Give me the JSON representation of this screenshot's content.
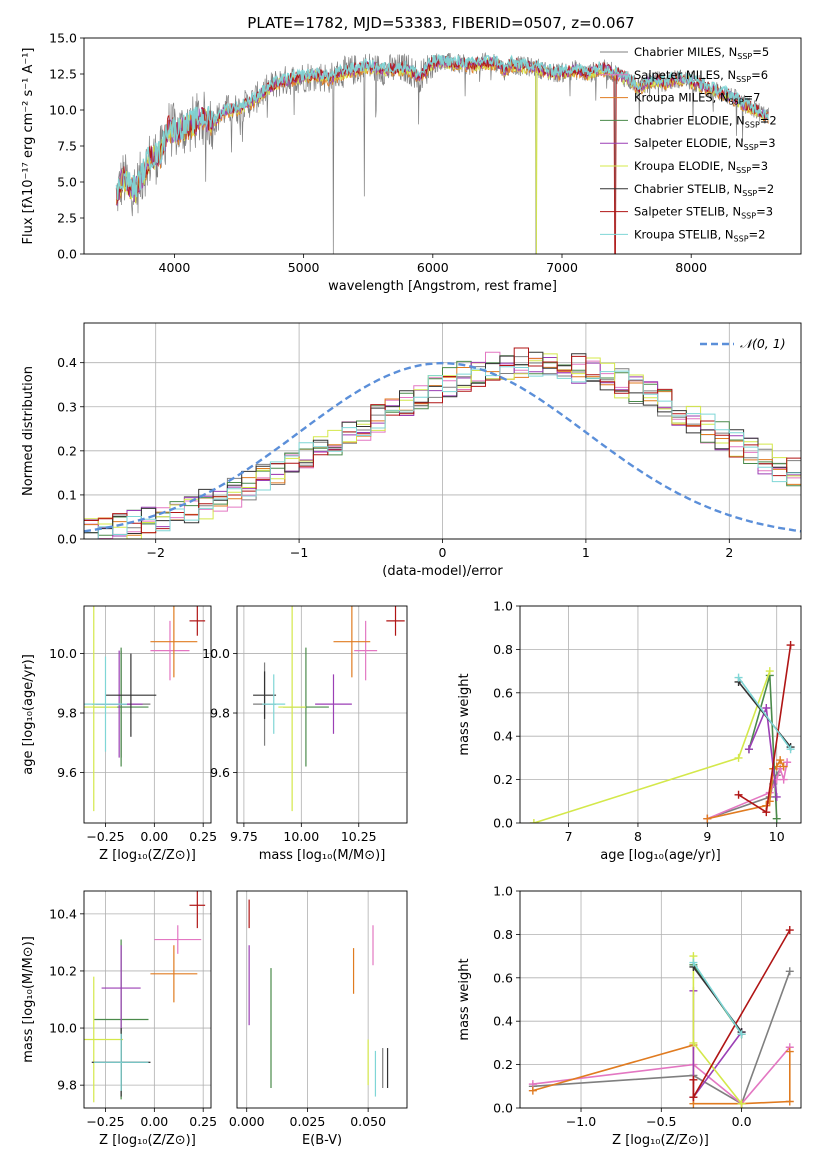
{
  "figure": {
    "title": "PLATE=1782, MJD=53383, FIBERID=0507, z=0.067"
  },
  "series_legend": [
    {
      "label": "Chabrier MILES, N",
      "sub": "SSP",
      "eq": "=5",
      "color": "#7f7f7f"
    },
    {
      "label": "Salpeter MILES, N",
      "sub": "SSP",
      "eq": "=6",
      "color": "#e377c2"
    },
    {
      "label": "Kroupa MILES, N",
      "sub": "SSP",
      "eq": "=7",
      "color": "#e07b20"
    },
    {
      "label": "Chabrier ELODIE, N",
      "sub": "SSP",
      "eq": "=2",
      "color": "#4a8a4a"
    },
    {
      "label": "Salpeter ELODIE, N",
      "sub": "SSP",
      "eq": "=3",
      "color": "#9b3fb5"
    },
    {
      "label": "Kroupa ELODIE, N",
      "sub": "SSP",
      "eq": "=3",
      "color": "#d4e84a"
    },
    {
      "label": "Chabrier STELIB, N",
      "sub": "SSP",
      "eq": "=2",
      "color": "#333333"
    },
    {
      "label": "Salpeter STELIB, N",
      "sub": "SSP",
      "eq": "=3",
      "color": "#b01515"
    },
    {
      "label": "Kroupa STELIB, N",
      "sub": "SSP",
      "eq": "=2",
      "color": "#7fd6d6"
    }
  ],
  "chart_data": [
    {
      "id": "spectrum",
      "type": "line",
      "xlabel": "wavelength [Angstrom, rest frame]",
      "ylabel": "Flux [fλ10⁻¹⁷ erg cm⁻² s⁻¹ A⁻¹]",
      "xlim": [
        3300,
        8850
      ],
      "ylim": [
        0,
        15
      ],
      "xticks": [
        4000,
        5000,
        6000,
        7000,
        8000
      ],
      "yticks": [
        0.0,
        2.5,
        5.0,
        7.5,
        10.0,
        12.5,
        15.0
      ],
      "continuum": [
        [
          3550,
          4.0
        ],
        [
          3600,
          5.2
        ],
        [
          3700,
          4.4
        ],
        [
          3800,
          6.5
        ],
        [
          3900,
          7.0
        ],
        [
          3950,
          8.8
        ],
        [
          4000,
          8.5
        ],
        [
          4100,
          8.8
        ],
        [
          4200,
          9.4
        ],
        [
          4300,
          9.2
        ],
        [
          4400,
          10.0
        ],
        [
          4500,
          10.1
        ],
        [
          4600,
          10.6
        ],
        [
          4700,
          11.3
        ],
        [
          4800,
          11.9
        ],
        [
          4900,
          12.1
        ],
        [
          5000,
          12.3
        ],
        [
          5100,
          12.4
        ],
        [
          5200,
          12.2
        ],
        [
          5300,
          12.6
        ],
        [
          5400,
          12.8
        ],
        [
          5500,
          13.0
        ],
        [
          5600,
          12.8
        ],
        [
          5700,
          12.8
        ],
        [
          5800,
          12.9
        ],
        [
          5900,
          12.3
        ],
        [
          6000,
          13.3
        ],
        [
          6100,
          13.3
        ],
        [
          6200,
          13.2
        ],
        [
          6300,
          13.1
        ],
        [
          6400,
          13.3
        ],
        [
          6500,
          13.3
        ],
        [
          6560,
          12.7
        ],
        [
          6600,
          13.2
        ],
        [
          6700,
          13.0
        ],
        [
          6800,
          13.0
        ],
        [
          6900,
          12.6
        ],
        [
          7000,
          12.6
        ],
        [
          7100,
          12.8
        ],
        [
          7200,
          12.5
        ],
        [
          7300,
          12.9
        ],
        [
          7400,
          12.6
        ],
        [
          7500,
          12.2
        ],
        [
          7600,
          11.5
        ],
        [
          7700,
          12.1
        ],
        [
          7800,
          11.9
        ],
        [
          7900,
          12.2
        ],
        [
          8000,
          12.0
        ],
        [
          8100,
          11.6
        ],
        [
          8200,
          11.3
        ],
        [
          8300,
          11.0
        ],
        [
          8400,
          10.4
        ],
        [
          8500,
          10.0
        ],
        [
          8600,
          9.5
        ]
      ],
      "features": [
        {
          "name": "drop-5200",
          "x": 5230,
          "y": 0
        },
        {
          "name": "drop-5470",
          "x": 5470,
          "y": 4.0
        },
        {
          "name": "drop-5890",
          "x": 5890,
          "y": 9.0
        },
        {
          "name": "drop-6800",
          "x": 6800,
          "y": 0
        },
        {
          "name": "drop-7410",
          "x": 7410,
          "y": 0
        }
      ]
    },
    {
      "id": "residual-histogram",
      "type": "line",
      "xlabel": "(data-model)/error",
      "ylabel": "Normed distribution",
      "xlim": [
        -2.5,
        2.5
      ],
      "ylim": [
        0,
        0.49
      ],
      "xticks": [
        -2,
        -1,
        0,
        1,
        2
      ],
      "yticks": [
        0.0,
        0.1,
        0.2,
        0.3,
        0.4
      ],
      "legend": {
        "label": "𝒩(0, 1)",
        "color": "#5b8fd9",
        "position": "upper right"
      },
      "bin_width": 0.1,
      "bins_start": -2.5,
      "base_density": [
        0.018,
        0.022,
        0.027,
        0.033,
        0.04,
        0.048,
        0.058,
        0.068,
        0.079,
        0.092,
        0.106,
        0.121,
        0.136,
        0.152,
        0.17,
        0.187,
        0.204,
        0.222,
        0.24,
        0.258,
        0.276,
        0.294,
        0.311,
        0.327,
        0.342,
        0.356,
        0.369,
        0.38,
        0.389,
        0.395,
        0.399,
        0.4,
        0.398,
        0.394,
        0.387,
        0.378,
        0.366,
        0.353,
        0.339,
        0.323,
        0.306,
        0.289,
        0.271,
        0.252,
        0.234,
        0.216,
        0.198,
        0.181,
        0.165,
        0.15
      ]
    },
    {
      "id": "age-vs-Z",
      "type": "scatter",
      "xlabel": "Z [log₁₀(Z/Z⊙)]",
      "ylabel": "age  [log₁₀(age/yr)]",
      "xlim": [
        -0.36,
        0.29
      ],
      "ylim": [
        9.43,
        10.16
      ],
      "xticks": [
        -0.25,
        0.0,
        0.25
      ],
      "yticks": [
        9.6,
        9.8,
        10.0
      ],
      "points": [
        {
          "series": 0,
          "x": -0.17,
          "y": 9.83,
          "xerr": 0.15,
          "yerr": 0.18
        },
        {
          "series": 1,
          "x": 0.08,
          "y": 10.01,
          "xerr": 0.1,
          "yerr": 0.1
        },
        {
          "series": 2,
          "x": 0.1,
          "y": 10.04,
          "xerr": 0.12,
          "yerr": 0.12
        },
        {
          "series": 3,
          "x": -0.17,
          "y": 9.82,
          "xerr": 0.14,
          "yerr": 0.2
        },
        {
          "series": 4,
          "x": -0.18,
          "y": 9.83,
          "xerr": 0.12,
          "yerr": 0.18
        },
        {
          "series": 5,
          "x": -0.31,
          "y": 9.82,
          "xerr": 0.12,
          "yerr": 0.35
        },
        {
          "series": 6,
          "x": -0.12,
          "y": 9.86,
          "xerr": 0.13,
          "yerr": 0.14
        },
        {
          "series": 7,
          "x": 0.22,
          "y": 10.11,
          "xerr": 0.04,
          "yerr": 0.05
        },
        {
          "series": 8,
          "x": -0.25,
          "y": 9.83,
          "xerr": 0.11,
          "yerr": 0.16
        }
      ]
    },
    {
      "id": "age-vs-mass",
      "type": "scatter",
      "xlabel": "mass [log₁₀(M/M⊙)]",
      "ylabel": "",
      "xlim": [
        9.72,
        10.46
      ],
      "ylim": [
        9.43,
        10.16
      ],
      "xticks": [
        9.75,
        10.0,
        10.25
      ],
      "yticks": [
        9.6,
        9.8,
        10.0
      ],
      "points": [
        {
          "series": 0,
          "x": 9.84,
          "y": 9.83,
          "xerr": 0.05,
          "yerr": 0.14
        },
        {
          "series": 1,
          "x": 10.28,
          "y": 10.01,
          "xerr": 0.05,
          "yerr": 0.1
        },
        {
          "series": 2,
          "x": 10.22,
          "y": 10.04,
          "xerr": 0.08,
          "yerr": 0.12
        },
        {
          "series": 3,
          "x": 10.02,
          "y": 9.82,
          "xerr": 0.1,
          "yerr": 0.2
        },
        {
          "series": 4,
          "x": 10.14,
          "y": 9.83,
          "xerr": 0.08,
          "yerr": 0.1
        },
        {
          "series": 5,
          "x": 9.96,
          "y": 9.82,
          "xerr": 0.06,
          "yerr": 0.35
        },
        {
          "series": 6,
          "x": 9.84,
          "y": 9.86,
          "xerr": 0.05,
          "yerr": 0.08
        },
        {
          "series": 7,
          "x": 10.41,
          "y": 10.11,
          "xerr": 0.04,
          "yerr": 0.05
        },
        {
          "series": 8,
          "x": 9.88,
          "y": 9.83,
          "xerr": 0.05,
          "yerr": 0.1
        }
      ]
    },
    {
      "id": "weight-vs-age",
      "type": "line",
      "xlabel": "age  [log₁₀(age/yr)]",
      "ylabel": "mass weight",
      "xlim": [
        6.3,
        10.35
      ],
      "ylim": [
        0,
        1
      ],
      "xticks": [
        7,
        8,
        9,
        10
      ],
      "yticks": [
        0.0,
        0.2,
        0.4,
        0.6,
        0.8,
        1.0
      ],
      "series": [
        {
          "series": 0,
          "x": [
            9.0,
            9.9,
            9.95,
            10.0,
            10.05
          ],
          "y": [
            0.02,
            0.12,
            0.18,
            0.22,
            0.25
          ]
        },
        {
          "series": 1,
          "x": [
            9.0,
            9.9,
            10.0,
            10.05,
            10.1,
            10.15
          ],
          "y": [
            0.02,
            0.14,
            0.2,
            0.25,
            0.2,
            0.28
          ]
        },
        {
          "series": 2,
          "x": [
            9.0,
            9.85,
            9.9,
            9.95,
            10.0,
            10.05,
            10.1
          ],
          "y": [
            0.02,
            0.08,
            0.1,
            0.25,
            0.26,
            0.29,
            0.26
          ]
        },
        {
          "series": 3,
          "x": [
            9.6,
            9.9,
            10.0
          ],
          "y": [
            0.34,
            0.68,
            0.02
          ]
        },
        {
          "series": 4,
          "x": [
            9.6,
            9.85,
            10.0
          ],
          "y": [
            0.34,
            0.53,
            0.12
          ]
        },
        {
          "series": 5,
          "x": [
            6.5,
            9.45,
            9.9
          ],
          "y": [
            0.0,
            0.3,
            0.7
          ]
        },
        {
          "series": 6,
          "x": [
            9.45,
            10.2
          ],
          "y": [
            0.65,
            0.35
          ]
        },
        {
          "series": 7,
          "x": [
            9.45,
            9.85,
            10.2
          ],
          "y": [
            0.13,
            0.05,
            0.82
          ]
        },
        {
          "series": 8,
          "x": [
            9.45,
            10.2
          ],
          "y": [
            0.67,
            0.34
          ]
        }
      ]
    },
    {
      "id": "mass-vs-Z",
      "type": "scatter",
      "xlabel": "Z [log₁₀(Z/Z⊙)]",
      "ylabel": "mass [log₁₀(M/M⊙)]",
      "xlim": [
        -0.36,
        0.29
      ],
      "ylim": [
        9.72,
        10.48
      ],
      "xticks": [
        -0.25,
        0.0,
        0.25
      ],
      "yticks": [
        9.8,
        10.0,
        10.2,
        10.4
      ],
      "points": [
        {
          "series": 0,
          "x": -0.17,
          "y": 9.88,
          "xerr": 0.15,
          "yerr": 0.1
        },
        {
          "series": 1,
          "x": 0.12,
          "y": 10.31,
          "xerr": 0.12,
          "yerr": 0.05
        },
        {
          "series": 2,
          "x": 0.1,
          "y": 10.19,
          "xerr": 0.12,
          "yerr": 0.1
        },
        {
          "series": 3,
          "x": -0.17,
          "y": 10.03,
          "xerr": 0.14,
          "yerr": 0.28
        },
        {
          "series": 4,
          "x": -0.17,
          "y": 10.14,
          "xerr": 0.1,
          "yerr": 0.15
        },
        {
          "series": 5,
          "x": -0.31,
          "y": 9.96,
          "xerr": 0.15,
          "yerr": 0.22
        },
        {
          "series": 6,
          "x": -0.17,
          "y": 9.88,
          "xerr": 0.15,
          "yerr": 0.12
        },
        {
          "series": 7,
          "x": 0.22,
          "y": 10.43,
          "xerr": 0.04,
          "yerr": 0.08
        },
        {
          "series": 8,
          "x": -0.17,
          "y": 9.88,
          "xerr": 0.14,
          "yerr": 0.1
        }
      ]
    },
    {
      "id": "mass-vs-ebv",
      "type": "scatter",
      "xlabel": "E(B-V)",
      "ylabel": "",
      "xlim": [
        -0.004,
        0.066
      ],
      "ylim": [
        9.72,
        10.48
      ],
      "xticks": [
        0.0,
        0.025,
        0.05
      ],
      "points": [
        {
          "series": 0,
          "x": 0.056,
          "y": 9.86,
          "xerr": 0.0,
          "yerr": 0.07
        },
        {
          "series": 1,
          "x": 0.052,
          "y": 10.29,
          "xerr": 0.0,
          "yerr": 0.07
        },
        {
          "series": 2,
          "x": 0.044,
          "y": 10.2,
          "xerr": 0.0,
          "yerr": 0.08
        },
        {
          "series": 3,
          "x": 0.01,
          "y": 10.0,
          "xerr": 0.0,
          "yerr": 0.21
        },
        {
          "series": 4,
          "x": 0.001,
          "y": 10.15,
          "xerr": 0.0,
          "yerr": 0.14
        },
        {
          "series": 5,
          "x": 0.05,
          "y": 9.88,
          "xerr": 0.0,
          "yerr": 0.08
        },
        {
          "series": 6,
          "x": 0.058,
          "y": 9.86,
          "xerr": 0.0,
          "yerr": 0.07
        },
        {
          "series": 7,
          "x": 0.001,
          "y": 10.4,
          "xerr": 0.0,
          "yerr": 0.05
        },
        {
          "series": 8,
          "x": 0.053,
          "y": 9.84,
          "xerr": 0.0,
          "yerr": 0.08
        }
      ]
    },
    {
      "id": "weight-vs-Z",
      "type": "line",
      "xlabel": "Z [log₁₀(Z/Z⊙)]",
      "ylabel": "mass weight",
      "xlim": [
        -1.38,
        0.37
      ],
      "ylim": [
        0,
        1
      ],
      "xticks": [
        -1.0,
        -0.5,
        0.0
      ],
      "yticks": [
        0.0,
        0.2,
        0.4,
        0.6,
        0.8,
        1.0
      ],
      "series": [
        {
          "series": 0,
          "x": [
            -1.3,
            -0.3,
            0.0,
            0.3
          ],
          "y": [
            0.1,
            0.15,
            0.02,
            0.63
          ]
        },
        {
          "series": 1,
          "x": [
            -1.3,
            -0.3,
            0.0,
            0.3
          ],
          "y": [
            0.11,
            0.2,
            0.02,
            0.28
          ]
        },
        {
          "series": 2,
          "x": [
            -1.3,
            -0.3,
            -0.3,
            0.0,
            0.3,
            0.3
          ],
          "y": [
            0.08,
            0.29,
            0.02,
            0.02,
            0.03,
            0.26
          ]
        },
        {
          "series": 3,
          "x": [
            -0.3,
            0.0
          ],
          "y": [
            0.66,
            0.34
          ]
        },
        {
          "series": 4,
          "x": [
            -0.3,
            -0.3,
            0.0
          ],
          "y": [
            0.54,
            0.05,
            0.35
          ]
        },
        {
          "series": 5,
          "x": [
            -0.3,
            -0.3,
            0.0
          ],
          "y": [
            0.7,
            0.3,
            0.02
          ]
        },
        {
          "series": 6,
          "x": [
            -0.3,
            0.0
          ],
          "y": [
            0.65,
            0.35
          ]
        },
        {
          "series": 7,
          "x": [
            -0.3,
            -0.3,
            0.3
          ],
          "y": [
            0.13,
            0.05,
            0.82
          ]
        },
        {
          "series": 8,
          "x": [
            -0.3,
            0.0
          ],
          "y": [
            0.67,
            0.34
          ]
        }
      ]
    }
  ]
}
